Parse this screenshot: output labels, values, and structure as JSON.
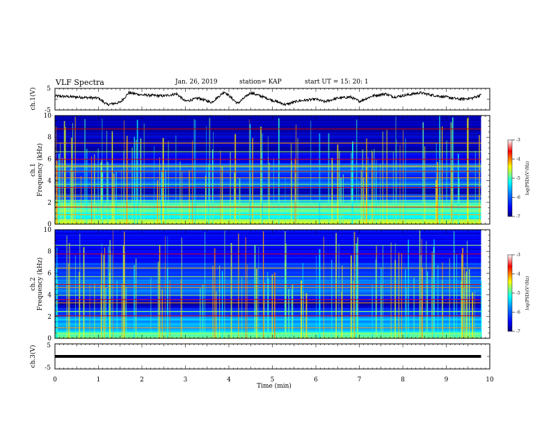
{
  "header": {
    "title": "VLF Spectra",
    "date": "Jan. 26, 2019",
    "station": "station= KAP",
    "start": "start  UT =   15: 20: 1"
  },
  "chart_data": [
    {
      "type": "line",
      "ylabel": "ch.1(V)",
      "yticks": [
        "5",
        "-5"
      ],
      "ylim": [
        -5,
        5
      ],
      "xlim": [
        0,
        10
      ],
      "description_points": [
        [
          0,
          1.5
        ],
        [
          0.5,
          1.0
        ],
        [
          1.0,
          0.5
        ],
        [
          1.2,
          -2.5
        ],
        [
          1.5,
          -1.5
        ],
        [
          1.7,
          3.0
        ],
        [
          2.0,
          2.0
        ],
        [
          2.5,
          1.5
        ],
        [
          2.8,
          2.5
        ],
        [
          3.0,
          -1.0
        ],
        [
          3.3,
          0.5
        ],
        [
          3.6,
          -1.5
        ],
        [
          3.9,
          3.5
        ],
        [
          4.2,
          -2.0
        ],
        [
          4.5,
          3.0
        ],
        [
          4.8,
          1.0
        ],
        [
          5.0,
          -0.5
        ],
        [
          5.3,
          -2.5
        ],
        [
          5.6,
          -0.8
        ],
        [
          6.0,
          0.0
        ],
        [
          6.2,
          -1.2
        ],
        [
          6.5,
          0.5
        ],
        [
          6.8,
          1.0
        ],
        [
          7.0,
          -1.0
        ],
        [
          7.3,
          1.5
        ],
        [
          7.6,
          2.5
        ],
        [
          7.8,
          1.0
        ],
        [
          8.1,
          2.0
        ],
        [
          8.4,
          3.0
        ],
        [
          8.7,
          1.8
        ],
        [
          9.0,
          1.0
        ],
        [
          9.3,
          0.0
        ],
        [
          9.6,
          0.5
        ],
        [
          9.8,
          2.0
        ]
      ]
    },
    {
      "type": "heatmap",
      "ylabel": "ch.1 Frequency (kHz)",
      "yticks": [
        "0",
        "2",
        "4",
        "6",
        "8",
        "10"
      ],
      "ylim": [
        0,
        10
      ],
      "xlim": [
        0,
        10
      ],
      "data_end_min": 9.8,
      "colorbar": {
        "label": "log(PSD)(V²/Hz)",
        "ticks": [
          "-3",
          "-4",
          "-5",
          "-6",
          "-7"
        ],
        "range": [
          -7,
          -3
        ]
      },
      "bands": [
        {
          "f0": 0.0,
          "f1": 0.5,
          "level": -4.6
        },
        {
          "f0": 0.5,
          "f1": 1.1,
          "level": -5.2
        },
        {
          "f0": 1.1,
          "f1": 2.0,
          "level": -4.9
        },
        {
          "f0": 2.0,
          "f1": 2.3,
          "level": -5.6
        },
        {
          "f0": 2.3,
          "f1": 2.8,
          "level": -6.1
        },
        {
          "f0": 2.8,
          "f1": 3.3,
          "level": -6.8
        },
        {
          "f0": 3.3,
          "f1": 4.2,
          "level": -6.0
        },
        {
          "f0": 4.2,
          "f1": 4.8,
          "level": -6.3
        },
        {
          "f0": 4.8,
          "f1": 5.6,
          "level": -5.9
        },
        {
          "f0": 5.6,
          "f1": 6.6,
          "level": -6.5
        },
        {
          "f0": 6.6,
          "f1": 10.0,
          "level": -6.8
        }
      ],
      "lines_khz": [
        0.3,
        0.9,
        1.6,
        2.2,
        2.6,
        3.4,
        3.7,
        4.3,
        4.9,
        5.3,
        5.4,
        6.0,
        6.7,
        7.5,
        8.8
      ]
    },
    {
      "type": "heatmap",
      "ylabel": "ch.2 Frequency (kHz)",
      "yticks": [
        "0",
        "2",
        "4",
        "6",
        "8",
        "10"
      ],
      "ylim": [
        0,
        10
      ],
      "xlim": [
        0,
        10
      ],
      "data_end_min": 9.8,
      "colorbar": {
        "label": "log(PSD)(V²/Hz)",
        "ticks": [
          "-3",
          "-4",
          "-5",
          "-6",
          "-7"
        ],
        "range": [
          -7,
          -3
        ]
      },
      "bands": [
        {
          "f0": 0.0,
          "f1": 0.6,
          "level": -5.0
        },
        {
          "f0": 0.6,
          "f1": 2.0,
          "level": -5.6
        },
        {
          "f0": 2.0,
          "f1": 2.8,
          "level": -6.2
        },
        {
          "f0": 2.8,
          "f1": 3.5,
          "level": -6.8
        },
        {
          "f0": 3.5,
          "f1": 4.0,
          "level": -6.3
        },
        {
          "f0": 4.0,
          "f1": 5.4,
          "level": -5.9
        },
        {
          "f0": 5.4,
          "f1": 7.0,
          "level": -6.2
        },
        {
          "f0": 7.0,
          "f1": 10.0,
          "level": -6.5
        }
      ],
      "lines_khz": [
        0.5,
        1.0,
        2.1,
        2.5,
        3.3,
        3.6,
        4.0,
        4.7,
        5.0,
        5.7,
        6.5,
        7.8,
        8.6
      ]
    },
    {
      "type": "line",
      "ylabel": "ch.3(V)",
      "yticks": [
        "5",
        "-5"
      ],
      "ylim": [
        -5,
        5
      ],
      "xlim": [
        0,
        10
      ],
      "value_v": 0,
      "data_end_min": 9.8
    }
  ],
  "xaxis": {
    "label": "Time (min)",
    "ticks": [
      "0",
      "1",
      "2",
      "3",
      "4",
      "5",
      "6",
      "7",
      "8",
      "9",
      "10"
    ]
  },
  "colors": {
    "colormap": [
      "#00007f",
      "#0000ff",
      "#007fff",
      "#00ffff",
      "#7fff7f",
      "#ffff00",
      "#ff7f00",
      "#ff0000",
      "#7f0000",
      "#ffffff"
    ]
  }
}
